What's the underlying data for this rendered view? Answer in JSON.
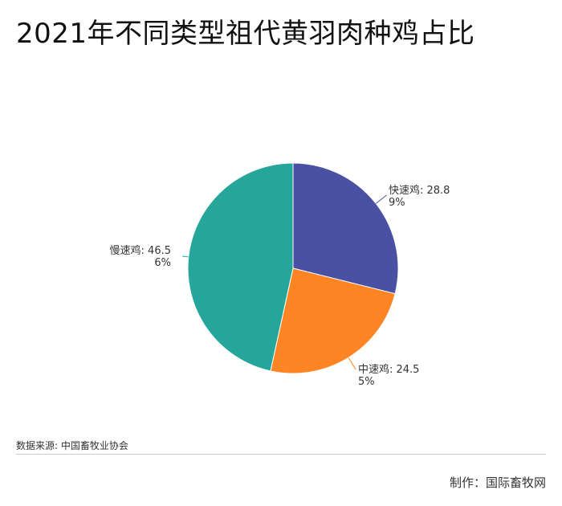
{
  "title": "2021年不同类型祖代黄羽肉种鸡占比",
  "source": "数据来源: 中国畜牧业协会",
  "credit": "制作：国际畜牧网",
  "chart_data": {
    "type": "pie",
    "title": "2021年不同类型祖代黄羽肉种鸡占比",
    "unit": "%",
    "slices": [
      {
        "label": "快速鸡",
        "value": 28.89,
        "color": "#4a51a2",
        "label_lines": [
          "快速鸡: 28.8",
          "9%"
        ]
      },
      {
        "label": "中速鸡",
        "value": 24.55,
        "color": "#ff8424",
        "label_lines": [
          "中速鸡: 24.5",
          "5%"
        ]
      },
      {
        "label": "慢速鸡",
        "value": 46.56,
        "color": "#26a69a",
        "label_lines": [
          "慢速鸡: 46.5",
          "6%"
        ]
      }
    ]
  }
}
